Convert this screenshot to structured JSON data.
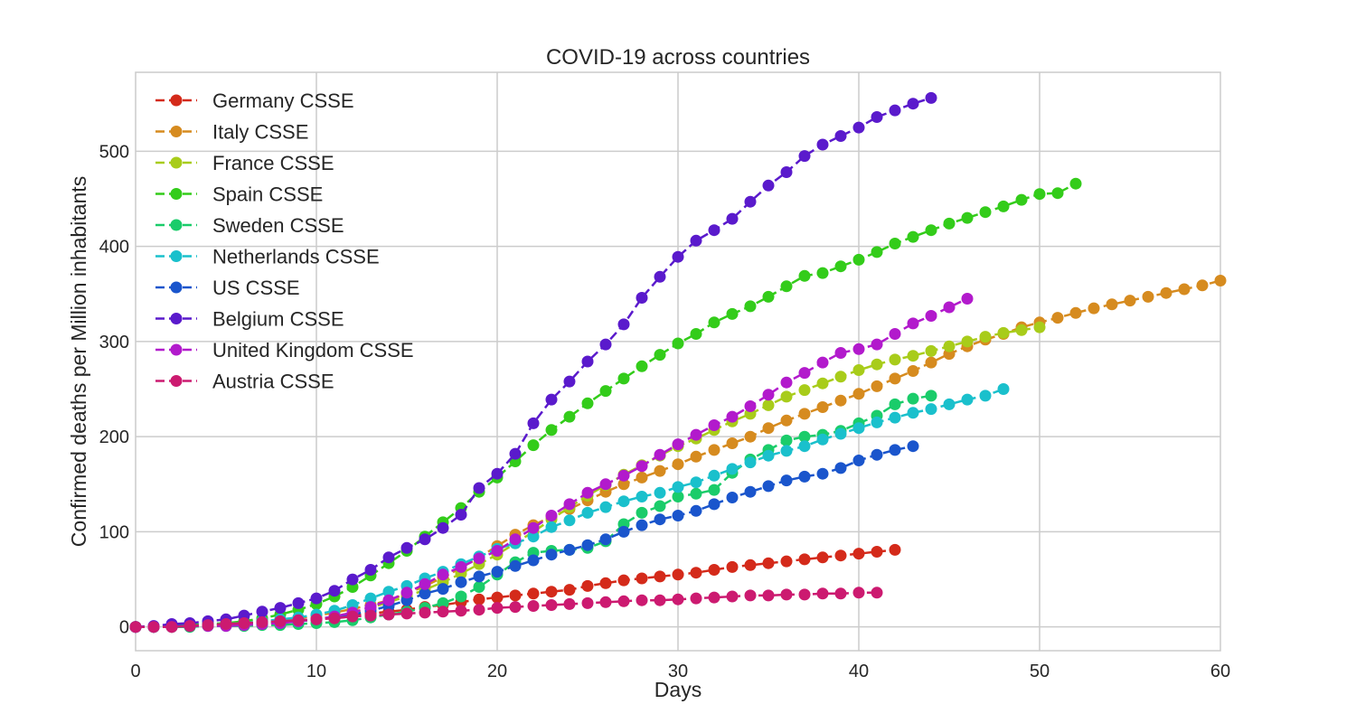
{
  "chart_data": {
    "type": "line",
    "title": "COVID-19 across countries",
    "xlabel": "Days",
    "ylabel": "Confirmed deaths per Million inhabitants",
    "xlim": [
      0,
      60
    ],
    "ylim": [
      -25,
      583
    ],
    "x_ticks": [
      0,
      10,
      20,
      30,
      40,
      50,
      60
    ],
    "y_ticks": [
      0,
      100,
      200,
      300,
      400,
      500
    ],
    "grid": true,
    "legend_position": "top-left",
    "line_style": "dashed",
    "marker": "circle",
    "series": [
      {
        "name": "Germany CSSE",
        "color": "#d42a1a",
        "values": [
          0,
          0,
          1,
          1,
          2,
          2,
          3,
          4,
          5,
          6,
          8,
          10,
          12,
          14,
          16,
          18,
          21,
          23,
          26,
          29,
          31,
          33,
          35,
          37,
          39,
          43,
          46,
          49,
          51,
          53,
          55,
          57,
          60,
          63,
          65,
          67,
          69,
          71,
          73,
          75,
          77,
          79,
          81
        ]
      },
      {
        "name": "Italy CSSE",
        "color": "#d68b1f",
        "values": [
          0,
          0,
          1,
          1,
          2,
          3,
          4,
          5,
          7,
          9,
          12,
          15,
          19,
          23,
          28,
          35,
          43,
          52,
          62,
          73,
          85,
          97,
          107,
          116,
          124,
          133,
          142,
          150,
          157,
          164,
          171,
          179,
          186,
          193,
          200,
          209,
          217,
          224,
          231,
          238,
          245,
          253,
          261,
          269,
          278,
          287,
          295,
          302,
          308,
          315,
          320,
          325,
          330,
          335,
          339,
          343,
          347,
          351,
          355,
          359,
          364
        ]
      },
      {
        "name": "France CSSE",
        "color": "#a8cc1a",
        "values": [
          0,
          0,
          0,
          1,
          1,
          2,
          2,
          3,
          4,
          6,
          8,
          11,
          15,
          20,
          26,
          32,
          39,
          47,
          56,
          66,
          76,
          88,
          100,
          113,
          126,
          138,
          149,
          160,
          170,
          180,
          190,
          198,
          207,
          216,
          224,
          233,
          242,
          249,
          256,
          263,
          270,
          276,
          281,
          285,
          290,
          295,
          300,
          305,
          309,
          312,
          315
        ]
      },
      {
        "name": "Spain CSSE",
        "color": "#33cc1a",
        "values": [
          0,
          0,
          1,
          2,
          3,
          4,
          6,
          9,
          13,
          18,
          24,
          32,
          42,
          54,
          67,
          80,
          95,
          110,
          125,
          142,
          157,
          174,
          191,
          207,
          221,
          235,
          248,
          261,
          274,
          286,
          298,
          308,
          320,
          329,
          337,
          347,
          358,
          369,
          372,
          379,
          386,
          394,
          403,
          410,
          417,
          424,
          430,
          436,
          442,
          449,
          455,
          456,
          466
        ]
      },
      {
        "name": "Sweden CSSE",
        "color": "#1acc6a",
        "values": [
          0,
          0,
          0,
          0,
          1,
          1,
          1,
          2,
          2,
          3,
          4,
          5,
          7,
          10,
          13,
          16,
          20,
          25,
          32,
          42,
          55,
          68,
          78,
          80,
          81,
          83,
          90,
          108,
          120,
          127,
          137,
          140,
          144,
          162,
          176,
          186,
          196,
          200,
          202,
          206,
          214,
          222,
          234,
          240,
          243
        ]
      },
      {
        "name": "Netherlands CSSE",
        "color": "#1ac0cc",
        "values": [
          0,
          0,
          1,
          1,
          2,
          3,
          4,
          6,
          8,
          10,
          13,
          17,
          23,
          30,
          37,
          43,
          51,
          58,
          66,
          74,
          82,
          88,
          95,
          105,
          112,
          120,
          126,
          132,
          137,
          141,
          147,
          152,
          159,
          166,
          173,
          180,
          185,
          190,
          197,
          203,
          209,
          215,
          220,
          225,
          229,
          234,
          239,
          243,
          250
        ]
      },
      {
        "name": "US CSSE",
        "color": "#1a55cc",
        "values": [
          0,
          0,
          1,
          1,
          2,
          2,
          3,
          4,
          5,
          6,
          8,
          10,
          13,
          17,
          22,
          28,
          35,
          40,
          47,
          53,
          58,
          64,
          70,
          76,
          81,
          86,
          92,
          100,
          107,
          113,
          117,
          122,
          129,
          136,
          142,
          148,
          154,
          158,
          161,
          167,
          175,
          181,
          186,
          190
        ]
      },
      {
        "name": "Belgium CSSE",
        "color": "#5a1acc",
        "values": [
          0,
          1,
          3,
          4,
          6,
          8,
          12,
          16,
          20,
          25,
          30,
          38,
          50,
          60,
          73,
          83,
          92,
          104,
          118,
          146,
          161,
          182,
          214,
          239,
          258,
          279,
          297,
          318,
          346,
          368,
          389,
          406,
          417,
          429,
          447,
          464,
          478,
          495,
          507,
          516,
          525,
          536,
          543,
          550,
          556
        ]
      },
      {
        "name": "United Kingdom CSSE",
        "color": "#b21acc",
        "values": [
          0,
          0,
          0,
          1,
          1,
          1,
          2,
          3,
          4,
          6,
          8,
          11,
          15,
          21,
          28,
          36,
          45,
          55,
          63,
          72,
          80,
          92,
          104,
          117,
          129,
          141,
          150,
          159,
          169,
          181,
          192,
          202,
          212,
          221,
          232,
          244,
          257,
          267,
          278,
          288,
          292,
          297,
          308,
          319,
          327,
          336,
          345
        ]
      },
      {
        "name": "Austria CSSE",
        "color": "#cc1a70",
        "values": [
          0,
          0,
          0,
          1,
          2,
          3,
          4,
          5,
          6,
          7,
          8,
          9,
          11,
          12,
          13,
          14,
          15,
          16,
          17,
          18,
          20,
          21,
          22,
          23,
          24,
          25,
          26,
          27,
          28,
          28,
          29,
          30,
          31,
          32,
          33,
          33,
          34,
          34,
          35,
          35,
          36,
          36
        ]
      }
    ]
  }
}
